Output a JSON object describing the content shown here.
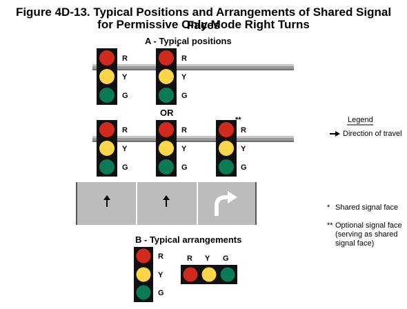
{
  "figure": {
    "title_line1": "Figure 4D-13. Typical Positions and Arrangements of Shared Signal Faces",
    "title_line2": "for Permissive Only Mode Right Turns"
  },
  "section_a": {
    "title": "A - Typical positions",
    "or_label": "OR"
  },
  "section_b": {
    "title": "B - Typical arrangements"
  },
  "lens_labels": {
    "red": "R",
    "yellow": "Y",
    "green": "G"
  },
  "markers": {
    "shared": "*",
    "optional": "**"
  },
  "legend": {
    "title": "Legend",
    "arrow_text": "Direction of travel",
    "shared_text": "Shared signal face",
    "optional_text_line1": "Optional signal face",
    "optional_text_line2": "(serving as shared",
    "optional_text_line3": "signal face)"
  },
  "colors": {
    "red": "#d02a1f",
    "yellow": "#fcd64a",
    "green": "#0a7a57",
    "housing": "#111111",
    "roadway": "#bcbcbc",
    "mast_arm": "#9a9a9a"
  },
  "lanes": [
    {
      "movement": "through",
      "icon": "up-arrow"
    },
    {
      "movement": "through",
      "icon": "up-arrow"
    },
    {
      "movement": "right-turn",
      "icon": "right-turn-arrow"
    }
  ]
}
